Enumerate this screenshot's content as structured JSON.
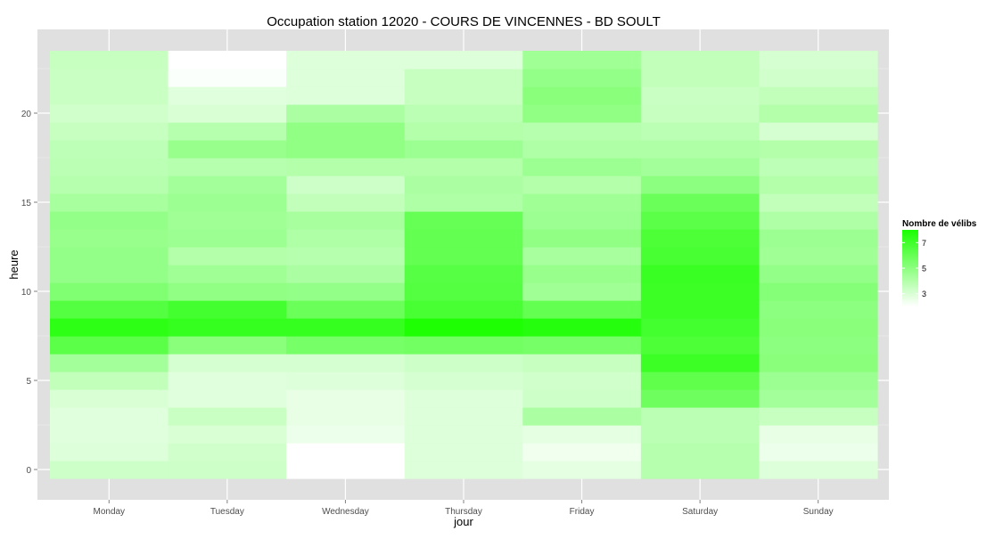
{
  "chart_data": {
    "type": "heatmap",
    "title": "Occupation station 12020 - COURS DE VINCENNES - BD SOULT",
    "xlabel": "jour",
    "ylabel": "heure",
    "categories": [
      "Monday",
      "Tuesday",
      "Wednesday",
      "Thursday",
      "Friday",
      "Saturday",
      "Sunday"
    ],
    "y_range": [
      -0.5,
      23.5
    ],
    "y_ticks": [
      0,
      5,
      10,
      15,
      20
    ],
    "grid": true,
    "panel_background": "#e0e0e0",
    "legend": {
      "title": "Nombre de vélibs",
      "position": "right",
      "ticks": [
        3,
        5,
        7
      ],
      "range": [
        2,
        8
      ],
      "low_color": "#ffffff",
      "high_color": "#1aff00"
    },
    "values": [
      [
        3.3,
        3.3,
        2.0,
        2.9,
        2.7,
        3.9,
        2.9
      ],
      [
        2.9,
        3.2,
        2.0,
        2.9,
        2.4,
        3.9,
        2.5
      ],
      [
        2.8,
        3.0,
        2.5,
        2.9,
        2.7,
        3.8,
        2.6
      ],
      [
        2.8,
        3.4,
        2.6,
        2.9,
        4.2,
        3.8,
        3.5
      ],
      [
        3.0,
        2.8,
        2.6,
        2.9,
        3.3,
        5.8,
        4.4
      ],
      [
        3.6,
        2.8,
        2.9,
        3.1,
        3.2,
        6.2,
        4.6
      ],
      [
        4.4,
        3.1,
        3.1,
        3.3,
        3.5,
        7.1,
        5.1
      ],
      [
        6.3,
        5.1,
        5.6,
        5.7,
        5.6,
        6.7,
        5.0
      ],
      [
        7.5,
        7.3,
        7.3,
        7.9,
        7.7,
        6.9,
        5.1
      ],
      [
        6.5,
        6.9,
        5.9,
        6.8,
        6.1,
        7.1,
        5.0
      ],
      [
        5.3,
        4.9,
        4.8,
        6.5,
        4.5,
        7.1,
        5.2
      ],
      [
        4.8,
        4.5,
        4.2,
        6.4,
        4.7,
        7.2,
        4.8
      ],
      [
        4.8,
        4.0,
        3.9,
        6.1,
        4.3,
        6.8,
        4.5
      ],
      [
        4.7,
        4.6,
        4.1,
        6.1,
        4.9,
        6.7,
        4.6
      ],
      [
        4.8,
        4.5,
        4.3,
        6.0,
        4.6,
        6.3,
        4.1
      ],
      [
        4.3,
        4.6,
        3.6,
        4.1,
        4.5,
        5.9,
        3.6
      ],
      [
        3.9,
        4.4,
        3.3,
        4.2,
        4.0,
        5.0,
        4.0
      ],
      [
        3.8,
        3.9,
        4.0,
        4.0,
        4.6,
        4.4,
        3.7
      ],
      [
        3.7,
        4.7,
        4.9,
        4.6,
        4.1,
        4.1,
        4.0
      ],
      [
        3.5,
        3.9,
        4.9,
        4.0,
        3.9,
        3.8,
        3.1
      ],
      [
        3.2,
        3.0,
        4.2,
        3.8,
        4.9,
        3.5,
        4.0
      ],
      [
        3.4,
        2.8,
        2.9,
        3.5,
        5.1,
        3.4,
        3.6
      ],
      [
        3.4,
        2.1,
        2.9,
        3.5,
        4.8,
        3.6,
        3.2
      ],
      [
        3.5,
        2.0,
        2.9,
        2.9,
        4.5,
        3.6,
        3.1
      ]
    ]
  }
}
